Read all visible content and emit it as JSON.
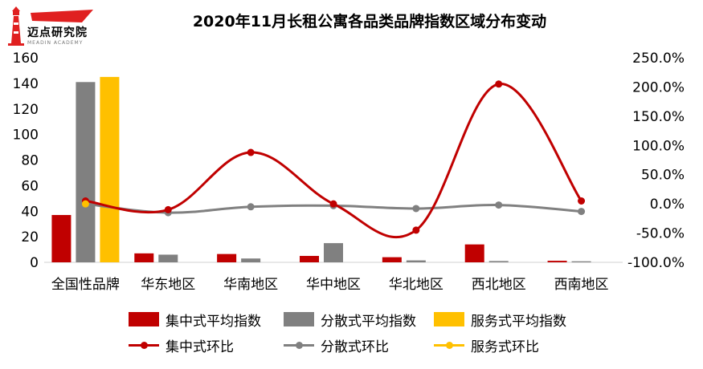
{
  "logo": {
    "name": "迈点研究院",
    "sub": "MEADIN ACADEMY",
    "color": "#e02020"
  },
  "chart_data": {
    "type": "bar",
    "title": "2020年11月长租公寓各品类品牌指数区域分布变动",
    "categories": [
      "全国性品牌",
      "华东地区",
      "华南地区",
      "华中地区",
      "华北地区",
      "西北地区",
      "西南地区"
    ],
    "ylim": [
      0,
      160
    ],
    "yticks": [
      "0",
      "20",
      "40",
      "60",
      "80",
      "100",
      "120",
      "140",
      "160"
    ],
    "y2lim": [
      -100,
      250
    ],
    "y2ticks": [
      "-100.0%",
      "-50.0%",
      "0.0%",
      "50.0%",
      "100.0%",
      "150.0%",
      "200.0%",
      "250.0%"
    ],
    "grid": false,
    "legend_position": "bottom",
    "bar_series": [
      {
        "name": "集中式平均指数",
        "color": "#c00000",
        "values": [
          37,
          7,
          6.5,
          5,
          4,
          14,
          1.2
        ]
      },
      {
        "name": "分散式平均指数",
        "color": "#808080",
        "values": [
          141,
          6,
          3,
          15,
          1.5,
          1,
          0.8
        ]
      },
      {
        "name": "服务式平均指数",
        "color": "#ffc000",
        "values": [
          145,
          null,
          null,
          null,
          null,
          null,
          null
        ]
      }
    ],
    "line_series": [
      {
        "name": "集中式环比",
        "color": "#c00000",
        "axis": "right",
        "values": [
          5,
          -10,
          88,
          0,
          -45,
          205,
          5
        ]
      },
      {
        "name": "分散式环比",
        "color": "#808080",
        "axis": "right",
        "values": [
          0,
          -15,
          -5,
          -3,
          -8,
          -2,
          -13
        ]
      },
      {
        "name": "服务式环比",
        "color": "#ffc000",
        "axis": "right",
        "values": [
          0,
          null,
          null,
          null,
          null,
          null,
          null
        ]
      }
    ]
  }
}
